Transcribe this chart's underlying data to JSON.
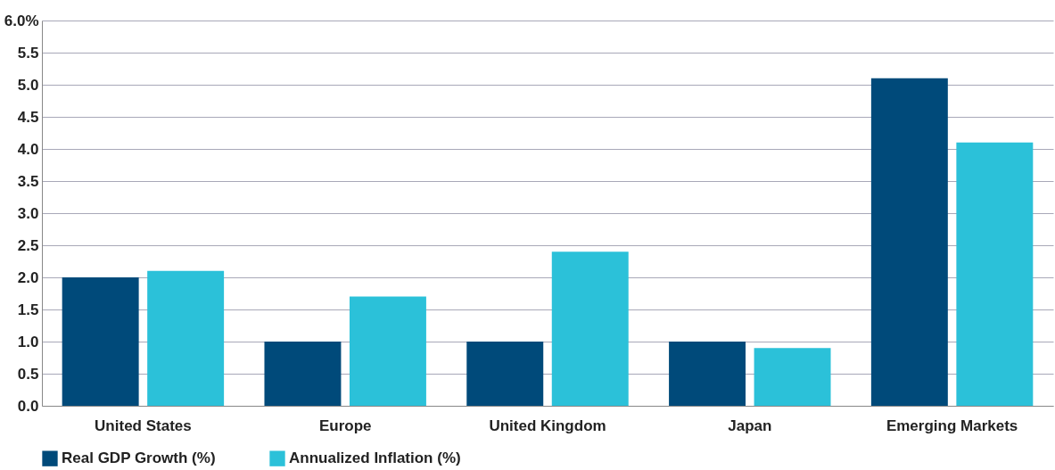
{
  "chart_data": {
    "type": "bar",
    "categories": [
      "United States",
      "Europe",
      "United Kingdom",
      "Japan",
      "Emerging Markets"
    ],
    "series": [
      {
        "name": "Real GDP Growth (%)",
        "color": "#004a7a",
        "values": [
          2.0,
          1.0,
          1.0,
          1.0,
          5.1
        ]
      },
      {
        "name": "Annualized Inflation (%)",
        "color": "#2bc1d9",
        "values": [
          2.1,
          1.7,
          2.4,
          0.9,
          4.1
        ]
      }
    ],
    "ylim": [
      0,
      6
    ],
    "yticks": [
      {
        "value": 0,
        "label": "0.0"
      },
      {
        "value": 0.5,
        "label": "0.5"
      },
      {
        "value": 1,
        "label": "1.0"
      },
      {
        "value": 1.5,
        "label": "1.5"
      },
      {
        "value": 2,
        "label": "2.0"
      },
      {
        "value": 2.5,
        "label": "2.5"
      },
      {
        "value": 3,
        "label": "3.0"
      },
      {
        "value": 3.5,
        "label": "3.5"
      },
      {
        "value": 4,
        "label": "4.0"
      },
      {
        "value": 4.5,
        "label": "4.5"
      },
      {
        "value": 5,
        "label": "5.0"
      },
      {
        "value": 5.5,
        "label": "5.5"
      },
      {
        "value": 6,
        "label": "6.0%"
      }
    ],
    "grid": "y",
    "legend": "bottom"
  }
}
